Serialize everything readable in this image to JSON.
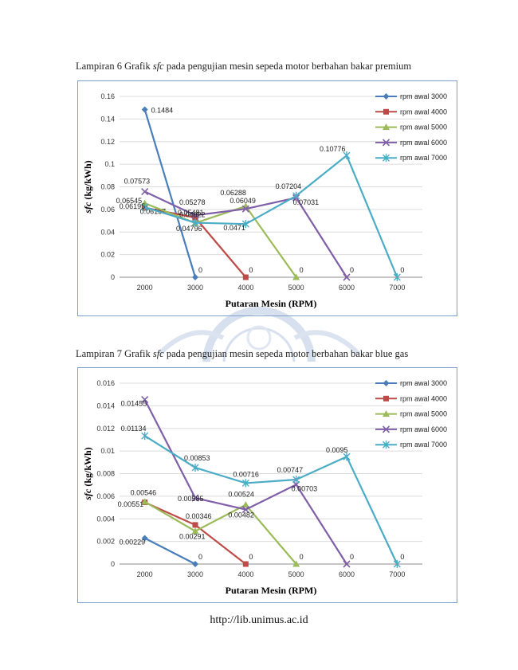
{
  "captions": [
    {
      "pre": "Lampiran 6 Grafik ",
      "em": "sfc",
      "post": " pada pengujian mesin sepeda motor berbahan bakar premium"
    },
    {
      "pre": "Lampiran 7 Grafik ",
      "em": "sfc",
      "post": " pada pengujian mesin sepeda motor berbahan bakar blue gas"
    }
  ],
  "footer": "http://lib.unimus.ac.id",
  "chart_data": [
    {
      "type": "line",
      "xlabel": "Putaran Mesin (RPM)",
      "ylabel": "sfc (kg/kWh)",
      "x": [
        2000,
        3000,
        4000,
        5000,
        6000,
        7000
      ],
      "ylim": [
        0,
        0.16
      ],
      "yticks": [
        0,
        0.02,
        0.04,
        0.06,
        0.08,
        0.1,
        0.12,
        0.14,
        0.16
      ],
      "ytick_labels": [
        "0",
        "0.02",
        "0.04",
        "0.06",
        "0.08",
        "0.1",
        "0.12",
        "0.14",
        "0.16"
      ],
      "legend_position": "top-right",
      "series": [
        {
          "name": "rpm awal 3000",
          "color": "#4a7ebb",
          "marker": "diamond",
          "x": [
            2000,
            3000
          ],
          "values": [
            0.1484,
            0
          ],
          "labels": [
            "0.1484",
            "0"
          ]
        },
        {
          "name": "rpm awal 4000",
          "color": "#be4b48",
          "marker": "square",
          "x": [
            2000,
            3000,
            4000
          ],
          "values": [
            0.06157,
            0.05278,
            0
          ],
          "labels": [
            "0.06157",
            "0.05278",
            "0"
          ]
        },
        {
          "name": "rpm awal 5000",
          "color": "#9bbb59",
          "marker": "triangle",
          "x": [
            2000,
            3000,
            4000,
            5000
          ],
          "values": [
            0.06545,
            0.04796,
            0.06288,
            0
          ],
          "labels": [
            "0.06545",
            "0.04796",
            "0.06288",
            "0"
          ]
        },
        {
          "name": "rpm awal 6000",
          "color": "#7f5fa8",
          "marker": "x",
          "x": [
            2000,
            3000,
            4000,
            5000,
            6000
          ],
          "values": [
            0.07573,
            0.05481,
            0.06049,
            0.07031,
            0
          ],
          "labels": [
            "0.07573",
            "0.05481",
            "0.06049",
            "0.07031",
            "0"
          ]
        },
        {
          "name": "rpm awal 7000",
          "color": "#4bacc6",
          "marker": "star",
          "x": [
            2000,
            3000,
            4000,
            5000,
            6000,
            7000
          ],
          "values": [
            0.06195,
            0.04822,
            0.0471,
            0.07204,
            0.10776,
            0
          ],
          "labels": [
            "0.06195",
            "0.04822",
            "0.0471",
            "0.07204",
            "0.10776",
            "0"
          ]
        }
      ]
    },
    {
      "type": "line",
      "xlabel": "Putaran Mesin (RPM)",
      "ylabel": "sfc (kg/kWh)",
      "x": [
        2000,
        3000,
        4000,
        5000,
        6000,
        7000
      ],
      "ylim": [
        0,
        0.016
      ],
      "yticks": [
        0,
        0.002,
        0.004,
        0.006,
        0.008,
        0.01,
        0.012,
        0.014,
        0.016
      ],
      "ytick_labels": [
        "0",
        "0.002",
        "0.004",
        "0.006",
        "0.008",
        "0.01",
        "0.012",
        "0.014",
        "0.016"
      ],
      "legend_position": "top-right",
      "series": [
        {
          "name": "rpm awal 3000",
          "color": "#4a7ebb",
          "marker": "diamond",
          "x": [
            2000,
            3000
          ],
          "values": [
            0.00229,
            0
          ],
          "labels": [
            "0.00229",
            "0"
          ]
        },
        {
          "name": "rpm awal 4000",
          "color": "#be4b48",
          "marker": "square",
          "x": [
            2000,
            3000,
            4000
          ],
          "values": [
            0.00546,
            0.00346,
            0
          ],
          "labels": [
            "0.00546",
            "0.00346",
            "0"
          ]
        },
        {
          "name": "rpm awal 5000",
          "color": "#9bbb59",
          "marker": "triangle",
          "x": [
            2000,
            3000,
            4000,
            5000
          ],
          "values": [
            0.00551,
            0.00291,
            0.00524,
            0
          ],
          "labels": [
            "0.00551",
            "0.00291",
            "0.00524",
            "0"
          ]
        },
        {
          "name": "rpm awal 6000",
          "color": "#7f5fa8",
          "marker": "x",
          "x": [
            2000,
            3000,
            4000,
            5000,
            6000
          ],
          "values": [
            0.01455,
            0.00585,
            0.00482,
            0.00703,
            0
          ],
          "labels": [
            "0.01455",
            "0.00585",
            "0.00482",
            "0.00703",
            "0"
          ]
        },
        {
          "name": "rpm awal 7000",
          "color": "#4bacc6",
          "marker": "star",
          "x": [
            2000,
            3000,
            4000,
            5000,
            6000,
            7000
          ],
          "values": [
            0.01134,
            0.00853,
            0.00716,
            0.00747,
            0.0095,
            0
          ],
          "labels": [
            "0.01134",
            "0.00853",
            "0.00716",
            "0.00747",
            "0.0095",
            "0"
          ]
        }
      ]
    }
  ]
}
